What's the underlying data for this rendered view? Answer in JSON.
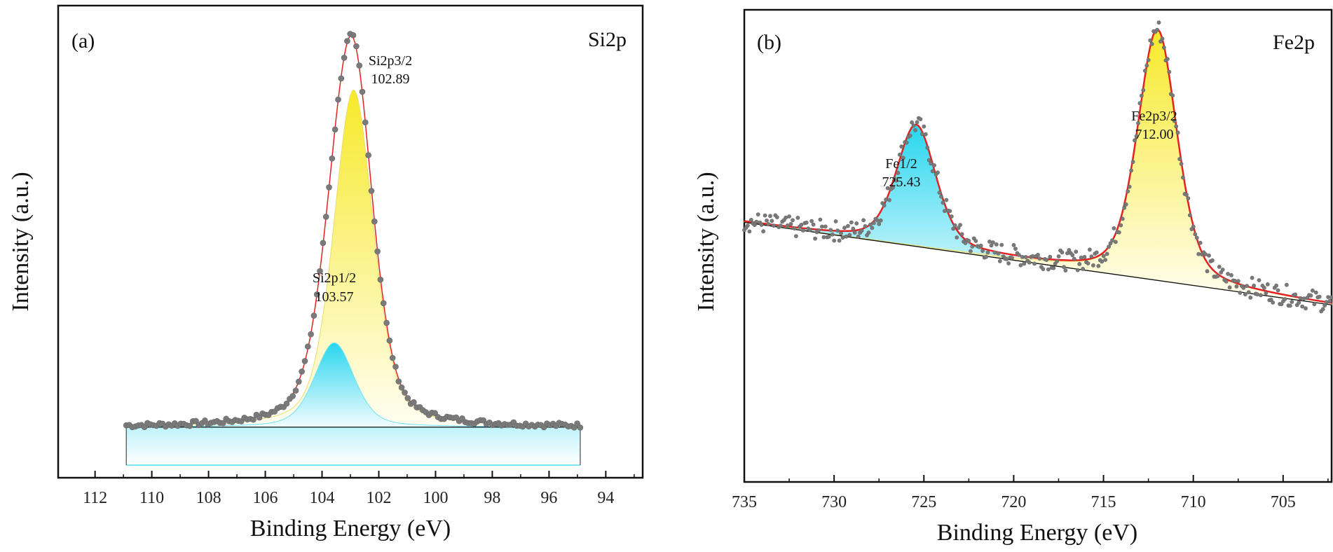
{
  "chart_data": [
    {
      "type": "line",
      "panel_label": "(a)",
      "title": "Si2p",
      "xlabel": "Binding Energy (eV)",
      "ylabel": "Intensity (a.u.)",
      "xlim": [
        113.3,
        92.7
      ],
      "x_reversed": true,
      "xticks": [
        112,
        110,
        108,
        106,
        104,
        102,
        100,
        98,
        96,
        94
      ],
      "y_scale": "arbitrary (0 = lowest baseline, 1 = maximum)",
      "ylim": [
        -0.12,
        1.0
      ],
      "fit_range": [
        110.9,
        94.9
      ],
      "background": {
        "y_start": 0.0,
        "y_end": 0.0
      },
      "peaks": [
        {
          "name": "Si2p3/2",
          "label": "Si2p3/2",
          "position_label": "102.89",
          "center": 102.89,
          "height": 0.8,
          "fwhm": 1.65,
          "color": "#f7e92a"
        },
        {
          "name": "Si2p1/2",
          "label": "Si2p1/2",
          "position_label": "103.57",
          "center": 103.57,
          "height": 0.2,
          "fwhm": 1.65,
          "color": "#28d6ee"
        }
      ],
      "series": [
        {
          "name": "Experimental data",
          "style": "gray-dots"
        },
        {
          "name": "Envelope fit",
          "style": "red-line"
        },
        {
          "name": "Background",
          "style": "black-line"
        }
      ]
    },
    {
      "type": "line",
      "panel_label": "(b)",
      "title": "Fe2p",
      "xlabel": "Binding Energy (eV)",
      "ylabel": "Intensity (a.u.)",
      "xlim": [
        735,
        702.3
      ],
      "x_reversed": true,
      "xticks": [
        735,
        730,
        725,
        720,
        715,
        710,
        705
      ],
      "y_scale": "arbitrary (0 = lowest baseline, 1 = maximum)",
      "ylim": [
        -0.6,
        1.0
      ],
      "fit_range": [
        735,
        702.3
      ],
      "background": {
        "y_start": 0.28,
        "y_end": 0.0
      },
      "peaks": [
        {
          "name": "Fe1/2",
          "label": "Fe1/2",
          "position_label": "725.43",
          "center": 725.43,
          "height": 0.41,
          "fwhm": 2.6,
          "color": "#28d6ee"
        },
        {
          "name": "Fe2p3/2",
          "label": "Fe2p3/2",
          "position_label": "712.00",
          "center": 712.0,
          "height": 0.85,
          "fwhm": 2.6,
          "color": "#f7e92a"
        }
      ],
      "series": [
        {
          "name": "Experimental data",
          "style": "gray-dots"
        },
        {
          "name": "Envelope fit",
          "style": "red-line"
        },
        {
          "name": "Background",
          "style": "black-line"
        }
      ]
    }
  ]
}
